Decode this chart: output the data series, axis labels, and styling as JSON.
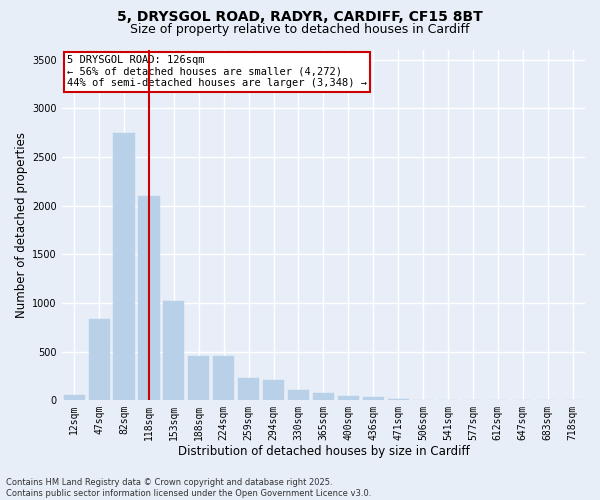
{
  "title_line1": "5, DRYSGOL ROAD, RADYR, CARDIFF, CF15 8BT",
  "title_line2": "Size of property relative to detached houses in Cardiff",
  "xlabel": "Distribution of detached houses by size in Cardiff",
  "ylabel": "Number of detached properties",
  "categories": [
    "12sqm",
    "47sqm",
    "82sqm",
    "118sqm",
    "153sqm",
    "188sqm",
    "224sqm",
    "259sqm",
    "294sqm",
    "330sqm",
    "365sqm",
    "400sqm",
    "436sqm",
    "471sqm",
    "506sqm",
    "541sqm",
    "577sqm",
    "612sqm",
    "647sqm",
    "683sqm",
    "718sqm"
  ],
  "values": [
    50,
    830,
    2750,
    2100,
    1020,
    450,
    450,
    230,
    210,
    100,
    75,
    40,
    30,
    15,
    5,
    2,
    0,
    0,
    0,
    0,
    0
  ],
  "bar_color": "#b8d0e8",
  "bar_edge_color": "#b8d0e8",
  "vline_x_index": 3,
  "vline_color": "#cc0000",
  "ylim": [
    0,
    3600
  ],
  "yticks": [
    0,
    500,
    1000,
    1500,
    2000,
    2500,
    3000,
    3500
  ],
  "annotation_title": "5 DRYSGOL ROAD: 126sqm",
  "annotation_line1": "← 56% of detached houses are smaller (4,272)",
  "annotation_line2": "44% of semi-detached houses are larger (3,348) →",
  "annotation_box_color": "#ffffff",
  "annotation_border_color": "#cc0000",
  "footer_line1": "Contains HM Land Registry data © Crown copyright and database right 2025.",
  "footer_line2": "Contains public sector information licensed under the Open Government Licence v3.0.",
  "background_color": "#e8eef8",
  "grid_color": "#ffffff",
  "title_fontsize": 10,
  "subtitle_fontsize": 9,
  "axis_label_fontsize": 8.5,
  "tick_fontsize": 7,
  "annotation_fontsize": 7.5,
  "footer_fontsize": 6
}
